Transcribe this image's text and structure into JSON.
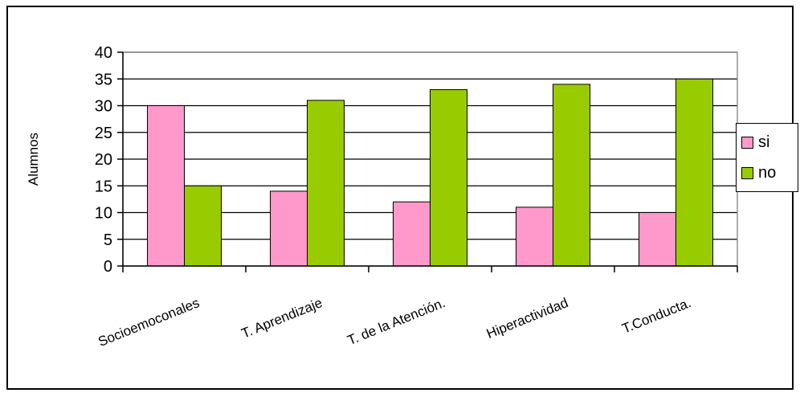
{
  "chart_data": {
    "type": "bar",
    "categories": [
      "Socioemoconales",
      "T. Aprendizaje",
      "T. de la Atención.",
      "Hiperactividad",
      "T.Conducta."
    ],
    "series": [
      {
        "name": "si",
        "values": [
          30,
          14,
          12,
          11,
          10
        ],
        "color": "#ff99cc"
      },
      {
        "name": "no",
        "values": [
          15,
          31,
          33,
          34,
          35
        ],
        "color": "#99cc00"
      }
    ],
    "ylabel": "Alumnos",
    "xlabel": "",
    "ylim": [
      0,
      40
    ],
    "yticks": [
      0,
      5,
      10,
      15,
      20,
      25,
      30,
      35,
      40
    ],
    "grid": true,
    "legend_position": "right"
  }
}
